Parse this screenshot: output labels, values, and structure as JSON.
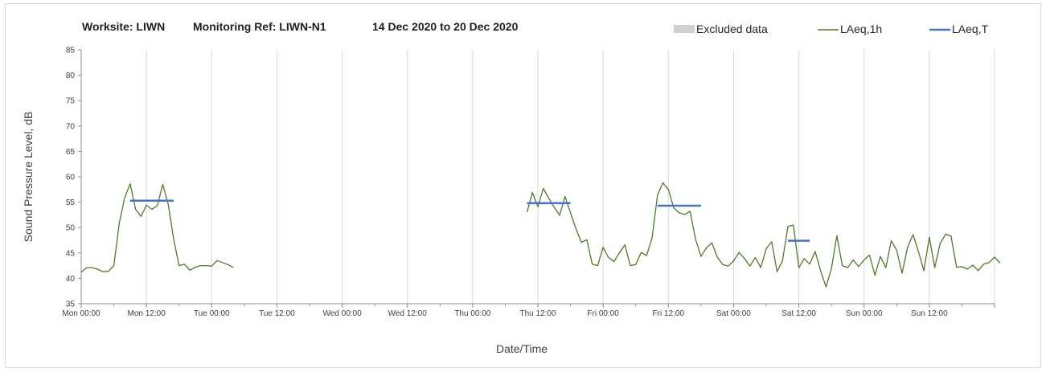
{
  "chart_data": {
    "type": "line",
    "title_parts": {
      "worksite": "Worksite: LIWN",
      "monitoring_ref": "Monitoring Ref: LIWN-N1",
      "period": "14 Dec 2020 to 20 Dec 2020"
    },
    "xlabel": "Date/Time",
    "ylabel": "Sound Pressure Level, dB",
    "ylim": [
      35,
      85
    ],
    "yticks": [
      "35",
      "40",
      "45",
      "50",
      "55",
      "60",
      "65",
      "70",
      "75",
      "80",
      "85"
    ],
    "xticks": [
      "Mon 00:00",
      "Mon 12:00",
      "Tue 00:00",
      "Tue 12:00",
      "Wed 00:00",
      "Wed 12:00",
      "Thu 00:00",
      "Thu 12:00",
      "Fri 00:00",
      "Fri 12:00",
      "Sat 00:00",
      "Sat 12:00",
      "Sun 00:00",
      "Sun 12:00"
    ],
    "x_unit": "hours from Mon 00:00",
    "xlim": [
      0,
      168
    ],
    "grid": "vertical",
    "legend_position": "top-right",
    "colors": {
      "excluded": "#d0d0d0",
      "laeq_1h": "#4f7a28",
      "laeq_t": "#4472c4"
    },
    "series": [
      {
        "name": "LAeq,1h",
        "segments": [
          [
            [
              0,
              41.2
            ],
            [
              1,
              42.1
            ],
            [
              2,
              42.1
            ],
            [
              3,
              41.8
            ],
            [
              4,
              41.3
            ],
            [
              5,
              41.4
            ],
            [
              6,
              42.5
            ],
            [
              7,
              50.8
            ],
            [
              8,
              55.9
            ],
            [
              9,
              58.6
            ],
            [
              10,
              53.6
            ],
            [
              11,
              52.2
            ],
            [
              12,
              54.4
            ],
            [
              13,
              53.6
            ],
            [
              14,
              54.3
            ],
            [
              15,
              58.5
            ],
            [
              16,
              54.6
            ],
            [
              17,
              47.7
            ],
            [
              18,
              42.5
            ],
            [
              19,
              42.8
            ],
            [
              20,
              41.6
            ],
            [
              21,
              42.2
            ],
            [
              22,
              42.5
            ],
            [
              23,
              42.5
            ],
            [
              24,
              42.4
            ],
            [
              25,
              43.5
            ],
            [
              26,
              43.1
            ],
            [
              27,
              42.7
            ],
            [
              28,
              42.1
            ]
          ],
          [
            [
              82,
              53.0
            ],
            [
              83,
              56.9
            ],
            [
              84,
              54.1
            ],
            [
              85,
              57.7
            ],
            [
              86,
              55.8
            ],
            [
              87,
              54.0
            ],
            [
              88,
              52.4
            ],
            [
              89,
              56.1
            ],
            [
              90,
              52.9
            ],
            [
              91,
              49.8
            ],
            [
              92,
              47.1
            ],
            [
              93,
              47.6
            ],
            [
              94,
              42.8
            ],
            [
              95,
              42.5
            ],
            [
              96,
              46.1
            ],
            [
              97,
              44.1
            ],
            [
              98,
              43.3
            ],
            [
              99,
              45.0
            ],
            [
              100,
              46.6
            ],
            [
              101,
              42.5
            ],
            [
              102,
              42.7
            ],
            [
              103,
              45.1
            ],
            [
              104,
              44.5
            ],
            [
              105,
              47.9
            ],
            [
              106,
              56.4
            ],
            [
              107,
              58.8
            ],
            [
              108,
              57.5
            ],
            [
              109,
              53.9
            ],
            [
              110,
              52.9
            ],
            [
              111,
              52.6
            ],
            [
              112,
              53.2
            ],
            [
              113,
              47.7
            ],
            [
              114,
              44.3
            ],
            [
              115,
              46.0
            ],
            [
              116,
              47.0
            ],
            [
              117,
              44.2
            ],
            [
              118,
              42.7
            ],
            [
              119,
              42.4
            ],
            [
              120,
              43.4
            ],
            [
              121,
              45.1
            ],
            [
              122,
              43.9
            ],
            [
              123,
              42.4
            ],
            [
              124,
              44.1
            ],
            [
              125,
              42.1
            ],
            [
              126,
              45.8
            ],
            [
              127,
              47.2
            ],
            [
              128,
              41.3
            ],
            [
              129,
              43.5
            ],
            [
              130,
              50.2
            ],
            [
              131,
              50.5
            ],
            [
              132,
              42.1
            ],
            [
              133,
              43.9
            ],
            [
              134,
              42.8
            ],
            [
              135,
              45.3
            ],
            [
              136,
              41.5
            ],
            [
              137,
              38.3
            ],
            [
              138,
              41.9
            ],
            [
              139,
              48.4
            ],
            [
              140,
              42.5
            ],
            [
              141,
              42.1
            ],
            [
              142,
              43.6
            ],
            [
              143,
              42.3
            ],
            [
              144,
              43.6
            ],
            [
              145,
              44.6
            ],
            [
              146,
              40.6
            ],
            [
              147,
              44.3
            ],
            [
              148,
              42.1
            ],
            [
              149,
              47.4
            ],
            [
              150,
              45.5
            ],
            [
              151,
              41.0
            ],
            [
              152,
              46.1
            ],
            [
              153,
              48.6
            ],
            [
              154,
              45.3
            ],
            [
              155,
              41.5
            ],
            [
              156,
              48.1
            ],
            [
              157,
              42.1
            ],
            [
              158,
              46.9
            ],
            [
              159,
              48.7
            ],
            [
              160,
              48.3
            ],
            [
              161,
              42.2
            ],
            [
              162,
              42.3
            ],
            [
              163,
              41.8
            ],
            [
              164,
              42.6
            ],
            [
              165,
              41.5
            ],
            [
              166,
              42.8
            ],
            [
              167,
              43.1
            ],
            [
              168,
              44.2
            ],
            [
              169,
              43.0
            ]
          ]
        ]
      },
      {
        "name": "LAeq,T",
        "segments": [
          [
            [
              9,
              55.3
            ],
            [
              17,
              55.3
            ]
          ],
          [
            [
              82,
              54.8
            ],
            [
              90,
              54.8
            ]
          ],
          [
            [
              106,
              54.3
            ],
            [
              114,
              54.3
            ]
          ],
          [
            [
              130,
              47.4
            ],
            [
              134,
              47.4
            ]
          ]
        ]
      }
    ],
    "legend": [
      "Excluded data",
      "LAeq,1h",
      "LAeq,T"
    ]
  }
}
